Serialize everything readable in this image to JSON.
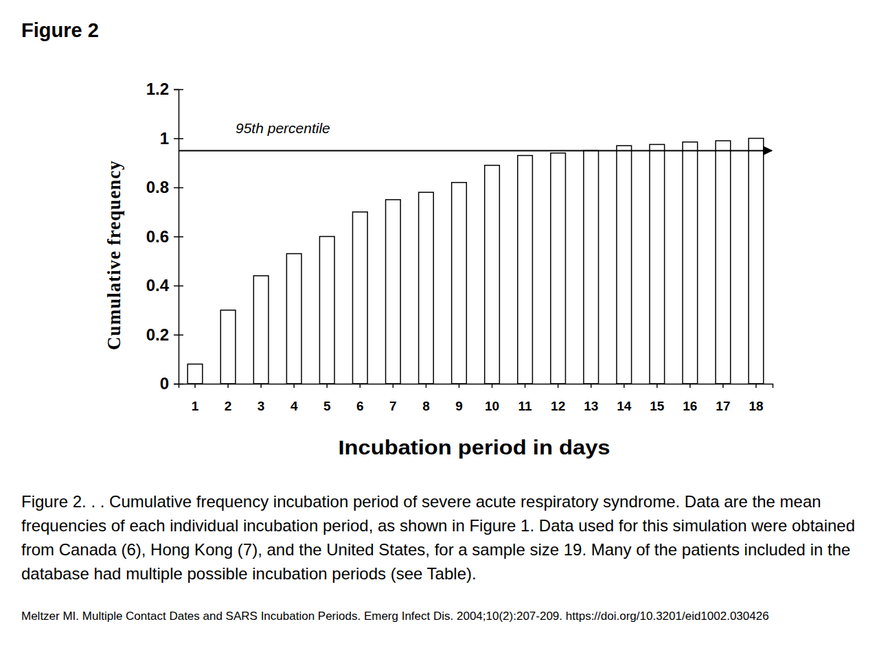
{
  "chart_data": {
    "type": "bar",
    "title": "Figure 2",
    "x_label": "Incubation period in days",
    "y_label": "Cumulative frequency",
    "categories": [
      "1",
      "2",
      "3",
      "4",
      "5",
      "6",
      "7",
      "8",
      "9",
      "10",
      "11",
      "12",
      "13",
      "14",
      "15",
      "16",
      "17",
      "18"
    ],
    "values": [
      0.08,
      0.3,
      0.44,
      0.53,
      0.6,
      0.7,
      0.75,
      0.78,
      0.82,
      0.89,
      0.93,
      0.94,
      0.95,
      0.97,
      0.975,
      0.985,
      0.99,
      1.0
    ],
    "color": "#ffffff",
    "ylim": [
      0,
      1.2
    ],
    "yticks": [
      0,
      0.2,
      0.4,
      0.6,
      0.8,
      1,
      1.2
    ],
    "grid": false,
    "annotations": [
      {
        "text": "95th percentile",
        "value": 0.95
      }
    ],
    "caption": "Figure 2. . . Cumulative frequency incubation period of severe acute respiratory syndrome. Data are the mean frequencies of each individual incubation period, as shown in Figure 1. Data used for this simulation were obtained from Canada (6), Hong Kong (7), and the United States, for a sample size 19. Many of the patients included in the database had multiple possible incubation periods (see Table).",
    "source": "Meltzer MI. Multiple Contact Dates and SARS Incubation Periods. Emerg Infect Dis. 2004;10(2):207-209. https://doi.org/10.3201/eid1002.030426"
  }
}
